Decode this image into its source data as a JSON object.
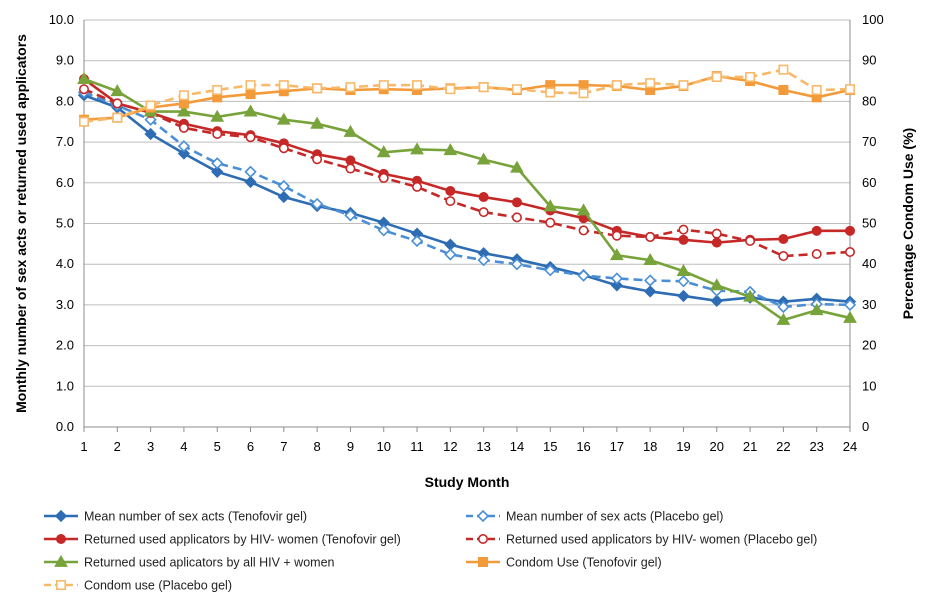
{
  "chart_data": {
    "type": "line",
    "title": "",
    "xlabel": "Study Month",
    "ylabel_left": "Monthly number of sex acts or returned used applicators",
    "ylabel_right": "Percentage Condom Use (%)",
    "x": [
      1,
      2,
      3,
      4,
      5,
      6,
      7,
      8,
      9,
      10,
      11,
      12,
      13,
      14,
      15,
      16,
      17,
      18,
      19,
      20,
      21,
      22,
      23,
      24
    ],
    "y_left_range": [
      0,
      10
    ],
    "y_left_ticks": [
      "0.0",
      "1.0",
      "2.0",
      "3.0",
      "4.0",
      "5.0",
      "6.0",
      "7.0",
      "8.0",
      "9.0",
      "10.0"
    ],
    "y_right_range": [
      0,
      100
    ],
    "y_right_ticks": [
      "0",
      "10",
      "20",
      "30",
      "40",
      "50",
      "60",
      "70",
      "80",
      "90",
      "100"
    ],
    "grid": "horizontal",
    "legend_position": "bottom",
    "series": [
      {
        "name": "Mean number of sex acts (Tenofovir gel)",
        "axis": "left",
        "color": "#2e6db3",
        "dash": "solid",
        "marker": "diamond",
        "filled": true,
        "values": [
          8.15,
          7.85,
          7.2,
          6.72,
          6.27,
          6.02,
          5.65,
          5.43,
          5.26,
          5.02,
          4.75,
          4.48,
          4.27,
          4.12,
          3.93,
          3.73,
          3.48,
          3.33,
          3.22,
          3.1,
          3.18,
          3.08,
          3.15,
          3.08
        ]
      },
      {
        "name": "Mean number of sex acts (Placebo gel)",
        "axis": "left",
        "color": "#4a8fd6",
        "dash": "dashed",
        "marker": "diamond",
        "filled": false,
        "values": [
          8.22,
          7.9,
          7.55,
          6.9,
          6.48,
          6.27,
          5.92,
          5.48,
          5.2,
          4.83,
          4.57,
          4.24,
          4.1,
          4.0,
          3.85,
          3.72,
          3.65,
          3.6,
          3.58,
          3.35,
          3.32,
          2.95,
          3.02,
          3.0
        ]
      },
      {
        "name": "Returned used applicators by HIV- women (Tenofovir gel)",
        "axis": "left",
        "color": "#c62828",
        "dash": "solid",
        "marker": "circle",
        "filled": true,
        "values": [
          8.55,
          7.95,
          7.72,
          7.45,
          7.27,
          7.17,
          6.97,
          6.7,
          6.55,
          6.22,
          6.05,
          5.8,
          5.65,
          5.52,
          5.32,
          5.13,
          4.82,
          4.67,
          4.6,
          4.53,
          4.6,
          4.62,
          4.82,
          4.82
        ]
      },
      {
        "name": "Returned used applicators by HIV- women (Placebo gel)",
        "axis": "left",
        "color": "#c62828",
        "dash": "dashed",
        "marker": "circle",
        "filled": false,
        "values": [
          8.3,
          7.95,
          7.72,
          7.35,
          7.2,
          7.12,
          6.85,
          6.58,
          6.35,
          6.12,
          5.9,
          5.55,
          5.28,
          5.15,
          5.02,
          4.83,
          4.7,
          4.67,
          4.85,
          4.75,
          4.57,
          4.2,
          4.25,
          4.3
        ]
      },
      {
        "name": "Returned used aplicators by all HIV + women",
        "axis": "left",
        "color": "#77a33a",
        "dash": "solid",
        "marker": "triangle",
        "filled": true,
        "values": [
          8.55,
          8.25,
          7.75,
          7.75,
          7.62,
          7.75,
          7.55,
          7.45,
          7.25,
          6.75,
          6.82,
          6.8,
          6.57,
          6.37,
          5.42,
          5.32,
          4.22,
          4.1,
          3.83,
          3.48,
          3.2,
          2.63,
          2.87,
          2.68
        ]
      },
      {
        "name": "Condom Use (Tenofovir gel)",
        "axis": "right",
        "color": "#f39a3b",
        "dash": "solid",
        "marker": "square",
        "filled": true,
        "values": [
          75.5,
          76.0,
          78.5,
          79.5,
          81.0,
          81.8,
          82.5,
          83.2,
          82.8,
          83.0,
          82.8,
          83.2,
          83.5,
          82.8,
          84.0,
          84.0,
          83.8,
          82.8,
          83.8,
          86.2,
          85.0,
          82.8,
          81.0,
          82.8
        ]
      },
      {
        "name": "Condom use (Placebo gel)",
        "axis": "right",
        "color": "#f7b96a",
        "dash": "dashed",
        "marker": "square",
        "filled": false,
        "values": [
          75.0,
          76.0,
          79.0,
          81.5,
          82.8,
          84.0,
          84.0,
          83.2,
          83.5,
          84.0,
          84.0,
          83.0,
          83.5,
          83.0,
          82.2,
          82.0,
          84.0,
          84.5,
          84.0,
          86.0,
          86.0,
          87.8,
          82.8,
          83.0
        ]
      }
    ]
  }
}
